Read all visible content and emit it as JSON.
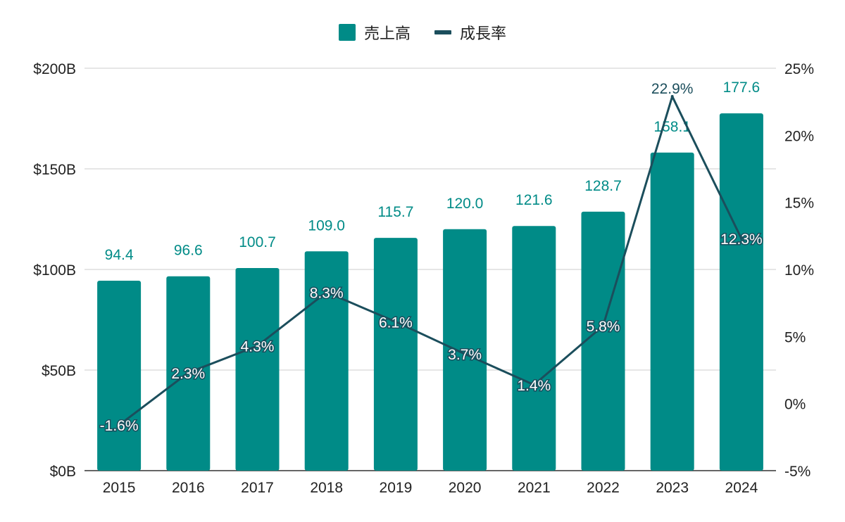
{
  "chart_data": {
    "type": "bar",
    "categories": [
      "2015",
      "2016",
      "2017",
      "2018",
      "2019",
      "2020",
      "2021",
      "2022",
      "2023",
      "2024"
    ],
    "series": [
      {
        "name": "売上高",
        "type": "bar",
        "axis": "left",
        "color": "#008b87",
        "values": [
          94.4,
          96.6,
          100.7,
          109.0,
          115.7,
          120.0,
          121.6,
          128.7,
          158.1,
          177.6
        ],
        "labels": [
          "94.4",
          "96.6",
          "100.7",
          "109.0",
          "115.7",
          "120.0",
          "121.6",
          "128.7",
          "158.1",
          "177.6"
        ]
      },
      {
        "name": "成長率",
        "type": "line",
        "axis": "right",
        "color": "#1b4e5c",
        "values": [
          -1.6,
          2.3,
          4.3,
          8.3,
          6.1,
          3.7,
          1.4,
          5.8,
          22.9,
          12.3
        ],
        "labels": [
          "-1.6%",
          "2.3%",
          "4.3%",
          "8.3%",
          "6.1%",
          "3.7%",
          "1.4%",
          "5.8%",
          "22.9%",
          "12.3%"
        ]
      }
    ],
    "y_left": {
      "min": 0,
      "max": 200,
      "ticks": [
        "$0B",
        "$50B",
        "$100B",
        "$150B",
        "$200B"
      ]
    },
    "y_right": {
      "min": -5,
      "max": 25,
      "ticks": [
        "-5%",
        "0%",
        "5%",
        "10%",
        "15%",
        "20%",
        "25%"
      ]
    },
    "grid": true,
    "legend_position": "top-center"
  }
}
